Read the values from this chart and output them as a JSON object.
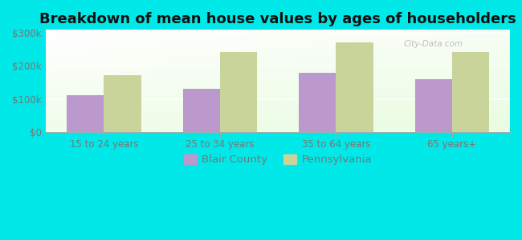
{
  "title": "Breakdown of mean house values by ages of householders",
  "categories": [
    "15 to 24 years",
    "25 to 34 years",
    "35 to 64 years",
    "65 years+"
  ],
  "blair_county": [
    110000,
    130000,
    180000,
    160000
  ],
  "pennsylvania": [
    173000,
    243000,
    273000,
    243000
  ],
  "blair_color": "#bb99cc",
  "pennsylvania_color": "#c8d49a",
  "background_color": "#00e8e8",
  "ylim": [
    0,
    310000
  ],
  "yticks": [
    0,
    100000,
    200000,
    300000
  ],
  "ytick_labels": [
    "$0",
    "$100k",
    "$200k",
    "$300k"
  ],
  "bar_width": 0.32,
  "legend_labels": [
    "Blair County",
    "Pennsylvania"
  ],
  "title_fontsize": 13,
  "tick_fontsize": 8.5,
  "legend_fontsize": 9.5,
  "tick_color": "#777777",
  "watermark": "City-Data.com"
}
